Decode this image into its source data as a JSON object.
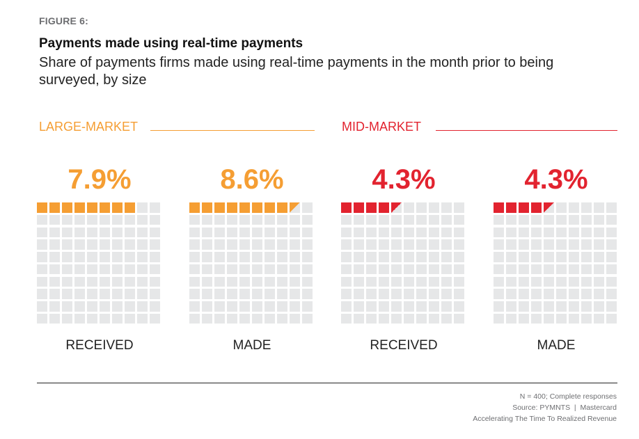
{
  "figure_label": "FIGURE 6:",
  "title": "Payments made using real-time payments",
  "subtitle": "Share of payments firms made using real-time payments in the month prior to being surveyed, by size",
  "chart_data": {
    "type": "waffle",
    "grid": [
      10,
      10
    ],
    "unit": "%",
    "groups": [
      {
        "name": "LARGE-MARKET",
        "color": "#f59e33",
        "panels": [
          {
            "label": "RECEIVED",
            "value": 7.9,
            "display": "7.9%"
          },
          {
            "label": "MADE",
            "value": 8.6,
            "display": "8.6%"
          }
        ]
      },
      {
        "name": "MID-MARKET",
        "color": "#e2232f",
        "panels": [
          {
            "label": "RECEIVED",
            "value": 4.3,
            "display": "4.3%"
          },
          {
            "label": "MADE",
            "value": 4.3,
            "display": "4.3%"
          }
        ]
      }
    ],
    "empty_color": "#e6e7e8"
  },
  "footer": {
    "note": "N = 400; Complete responses",
    "source": "Source: PYMNTS  |  Mastercard",
    "report": "Accelerating The Time To Realized Revenue"
  }
}
